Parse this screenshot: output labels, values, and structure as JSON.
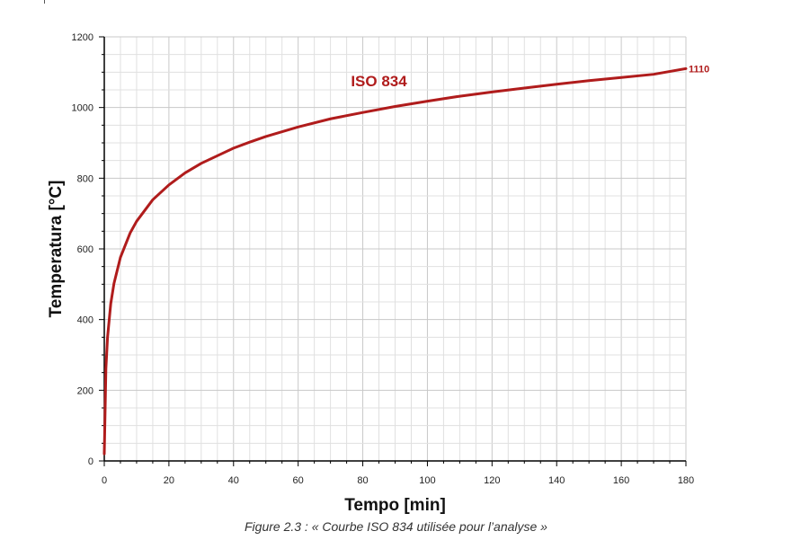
{
  "caption": "Figure 2.3 : « Courbe ISO 834 utilisée pour l’analyse »",
  "chart_data": {
    "type": "line",
    "xlabel": "Tempo [min]",
    "ylabel": "Temperatura [°C]",
    "xlim": [
      0,
      180
    ],
    "ylim": [
      0,
      1200
    ],
    "xticks": [
      "0",
      "20",
      "40",
      "60",
      "80",
      "100",
      "120",
      "140",
      "160",
      "180"
    ],
    "yticks": [
      "0",
      "200",
      "400",
      "600",
      "800",
      "1000",
      "1200"
    ],
    "grid": true,
    "series": [
      {
        "name": "ISO 834",
        "color": "#b01c1c",
        "x": [
          0,
          0.5,
          1,
          2,
          3,
          5,
          8,
          10,
          15,
          20,
          25,
          30,
          40,
          45,
          50,
          60,
          70,
          80,
          90,
          100,
          110,
          120,
          130,
          140,
          150,
          160,
          170,
          180
        ],
        "y": [
          20,
          261,
          349,
          445,
          502,
          576,
          645,
          678,
          739,
          781,
          815,
          842,
          885,
          902,
          918,
          945,
          968,
          986,
          1003,
          1018,
          1032,
          1044,
          1055,
          1066,
          1076,
          1085,
          1094,
          1110
        ]
      }
    ],
    "annotations": [
      {
        "text": "1110",
        "x": 180,
        "y": 1110
      }
    ],
    "series_label_position": {
      "x": 85,
      "y": 1020
    }
  }
}
